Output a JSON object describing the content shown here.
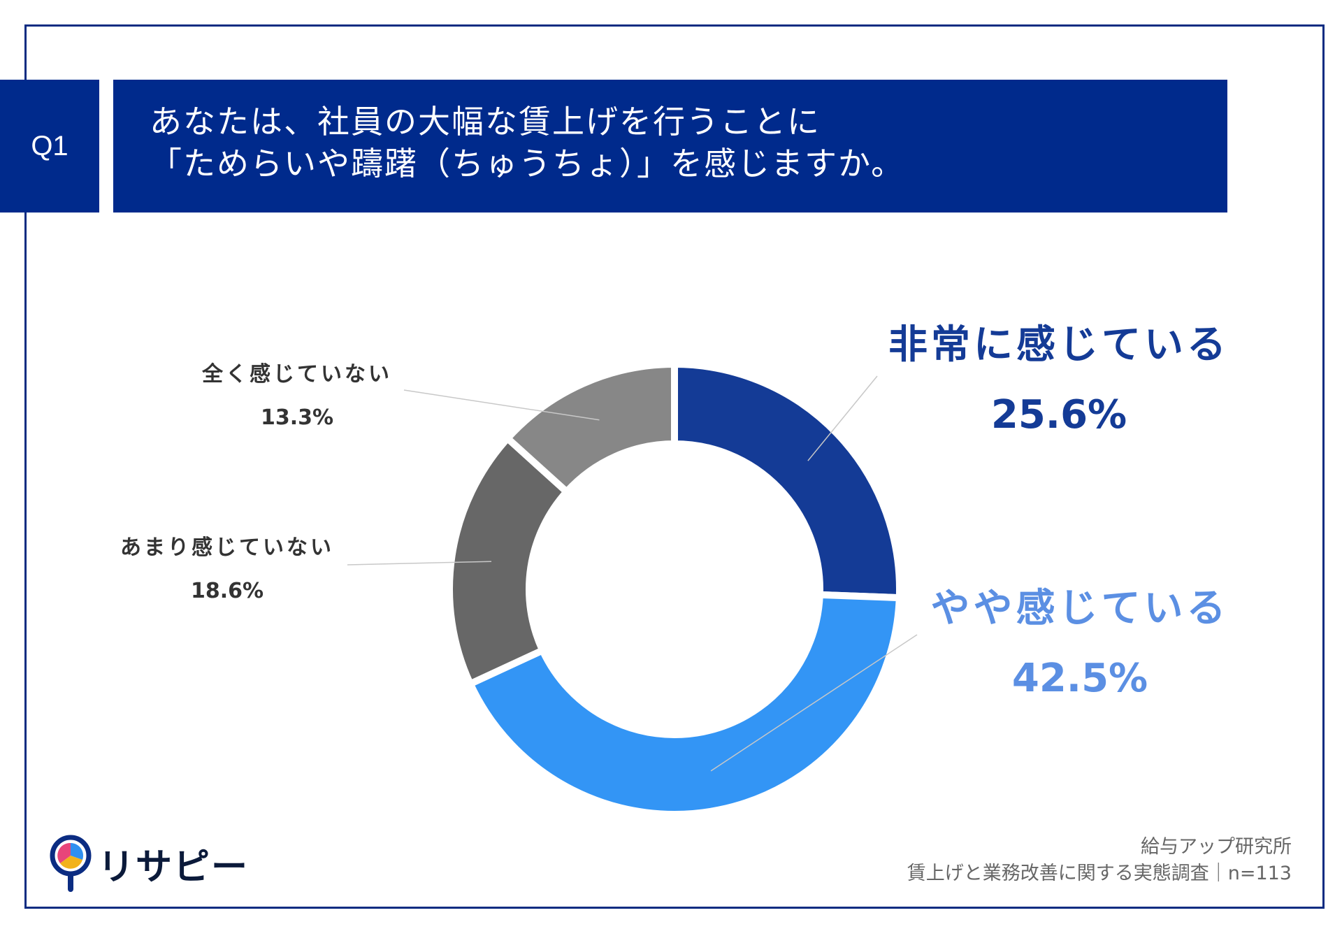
{
  "question": {
    "badge": "Q1",
    "line1": "あなたは、社員の大幅な賃上げを行うことに",
    "line2": "「ためらいや躊躇（ちゅうちょ）」を感じますか。"
  },
  "colors": {
    "frame": "#0b2c82",
    "title_bg": "#002a8c",
    "slice_1": "#143b96",
    "slice_2": "#3395f5",
    "slice_3": "#676767",
    "slice_4": "#878787",
    "label_1": "#143b96",
    "label_2": "#5b8fe3"
  },
  "chart_data": {
    "type": "pie",
    "variant": "donut",
    "title": "あなたは、社員の大幅な賃上げを行うことに「ためらいや躊躇（ちゅうちょ）」を感じますか。",
    "categories": [
      "非常に感じている",
      "やや感じている",
      "あまり感じていない",
      "全く感じていない"
    ],
    "values": [
      25.6,
      42.5,
      18.6,
      13.3
    ],
    "value_labels": [
      "25.6%",
      "42.5%",
      "18.6%",
      "13.3%"
    ],
    "unit": "%",
    "start": "12 o'clock, clockwise"
  },
  "logo": {
    "text": "リサピー"
  },
  "source": {
    "org": "給与アップ研究所",
    "survey": "賃上げと業務改善に関する実態調査｜n=113"
  }
}
